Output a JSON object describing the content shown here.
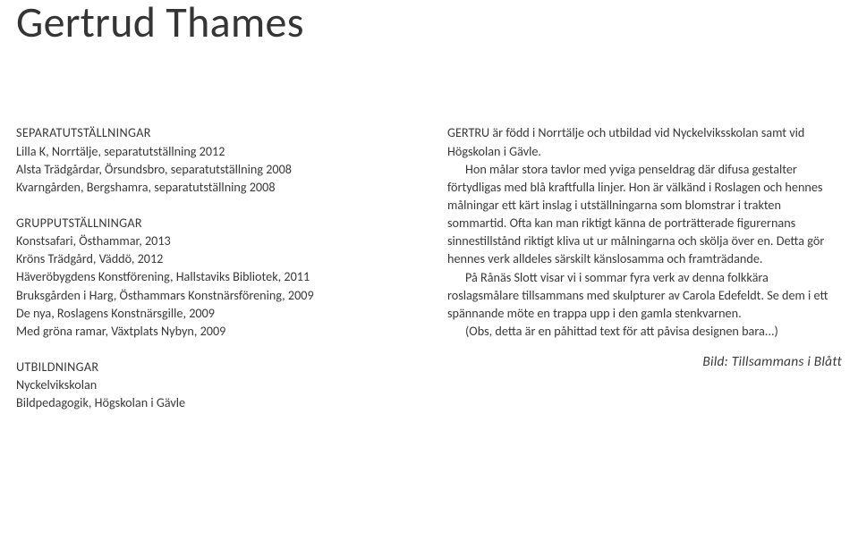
{
  "title": "Gertrud Thames",
  "left": {
    "sections": [
      {
        "heading": "SEPARATUTSTÄLLNINGAR",
        "lines": [
          "Lilla K, Norrtälje, separatutställning 2012",
          "Alsta Trädgårdar, Örsundsbro, separatutställning 2008",
          "Kvarngården, Bergshamra, separatutställning 2008"
        ]
      },
      {
        "heading": "GRUPPUTSTÄLLNINGAR",
        "lines": [
          "Konstsafari, Östhammar, 2013",
          "Kröns Trädgård, Väddö, 2012",
          "Häveröbygdens Konstförening, Hallstaviks Bibliotek, 2011",
          "Bruksgården i Harg, Östhammars Konstnärsförening, 2009",
          "De nya, Roslagens Konstnärsgille, 2009",
          "Med gröna ramar, Växtplats Nybyn, 2009"
        ]
      },
      {
        "heading": "UTBILDNINGAR",
        "lines": [
          "Nyckelvikskolan",
          "Bildpedagogik,  Högskolan i Gävle"
        ]
      }
    ]
  },
  "right": {
    "paragraphs": [
      {
        "indent": false,
        "text": "GERTRU är född i Norrtälje och utbildad vid Nyckelviksskolan samt vid Högskolan i Gävle."
      },
      {
        "indent": true,
        "text": "Hon målar stora tavlor med yviga penseldrag där difusa gestalter förtydligas med blå kraftfulla linjer. Hon är välkänd i Roslagen och hennes målningar ett kärt inslag i utställningarna som blomstrar i trakten sommartid. Ofta kan man riktigt känna de porträtterade figurernans sinnestillstånd riktigt kliva ut ur målningarna och skölja över en. Detta gör hennes verk alldeles särskilt känslosamma och framträdande."
      },
      {
        "indent": true,
        "text": "På Rånäs Slott visar vi i sommar fyra verk av denna folkkära roslagsmålare tillsammans med skulpturer av Carola Edefeldt. Se dem i ett spännande möte en trappa upp i den gamla stenkvarnen."
      },
      {
        "indent": true,
        "text": "(Obs, detta är en påhittad text för att påvisa designen bara...)"
      }
    ],
    "caption": "Bild: Tillsammans i Blått"
  }
}
